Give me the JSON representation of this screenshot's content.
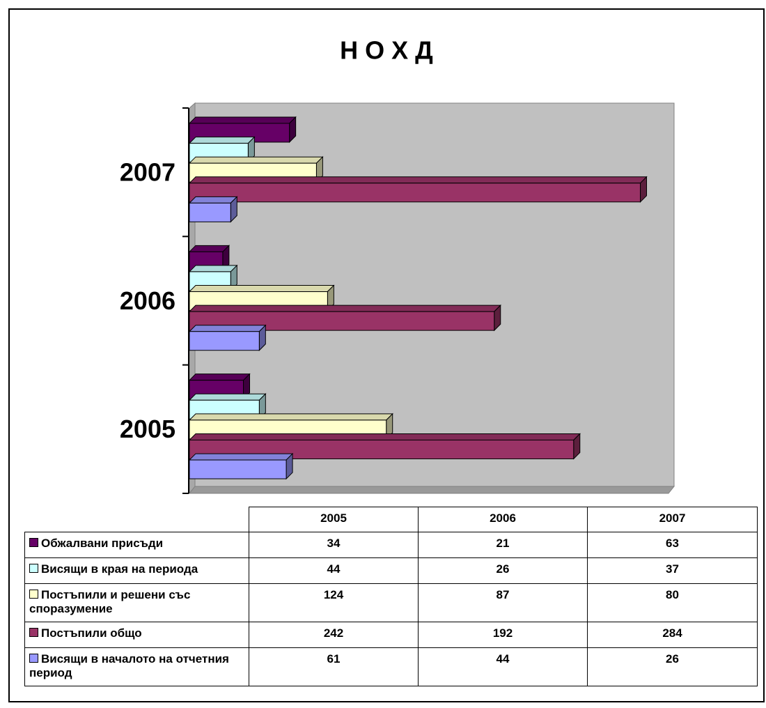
{
  "chart_data": {
    "type": "bar",
    "orientation": "horizontal",
    "three_d": true,
    "title": "Н О Х Д",
    "categories": [
      "2005",
      "2006",
      "2007"
    ],
    "xlim": [
      0,
      300
    ],
    "series": [
      {
        "name": "Обжалвани присъди",
        "color": "#660066",
        "values": [
          34,
          21,
          63
        ]
      },
      {
        "name": "Висящи в края на периода",
        "color": "#ccffff",
        "values": [
          44,
          26,
          37
        ]
      },
      {
        "name": "Постъпили и решени със споразумение",
        "color": "#ffffcc",
        "values": [
          124,
          87,
          80
        ]
      },
      {
        "name": "Постъпили общо",
        "color": "#993366",
        "values": [
          242,
          192,
          284
        ]
      },
      {
        "name": "Висящи в началото на отчетния период",
        "color": "#9999ff",
        "values": [
          61,
          44,
          26
        ]
      }
    ]
  }
}
